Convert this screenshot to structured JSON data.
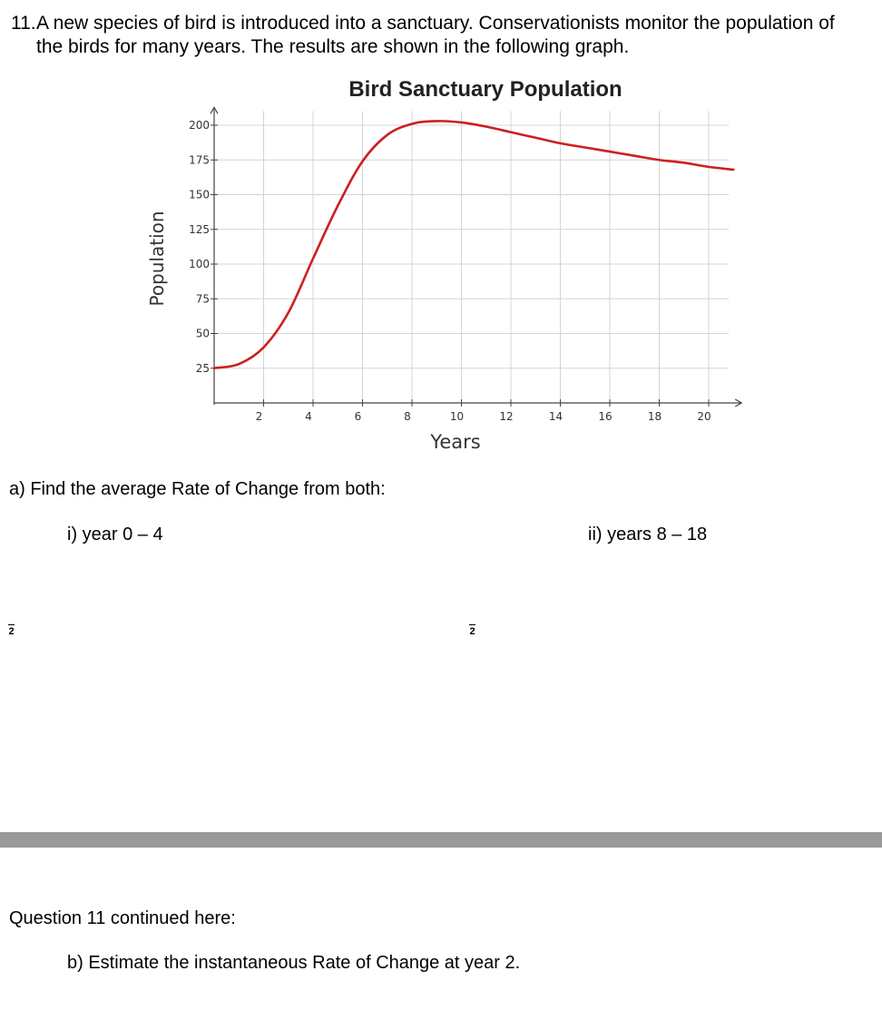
{
  "question": {
    "number": "11.",
    "line1": "A new species of bird is introduced into a sanctuary. Conservationists monitor the population of",
    "line2": "the birds for many years. The results are shown in the following graph."
  },
  "chart_data": {
    "type": "line",
    "title": "Bird Sanctuary Population",
    "xlabel": "Years",
    "ylabel": "Population",
    "xlim": [
      0,
      21
    ],
    "ylim": [
      0,
      205
    ],
    "x_ticks": [
      2,
      4,
      6,
      8,
      10,
      12,
      14,
      16,
      18,
      20
    ],
    "y_ticks": [
      25,
      50,
      75,
      100,
      125,
      150,
      175,
      200
    ],
    "grid": true,
    "line_color": "#cc1f1f",
    "series": [
      {
        "x": [
          0,
          1,
          2,
          3,
          4,
          5,
          6,
          7,
          8,
          9,
          10,
          11,
          12,
          13,
          14,
          15,
          16,
          17,
          18,
          19,
          20,
          21
        ],
        "values": [
          25,
          28,
          40,
          65,
          104,
          142,
          174,
          193,
          201,
          203,
          202,
          199,
          195,
          191,
          187,
          184,
          181,
          178,
          175,
          173,
          170,
          168
        ]
      }
    ]
  },
  "part_a": {
    "prompt": "a) Find the average Rate of Change from both:",
    "i": "i) year 0 – 4",
    "ii": "ii) years 8 – 18"
  },
  "marks": {
    "numerator": "",
    "denominator": "2"
  },
  "continued": "Question 11 continued here:",
  "part_b": "b) Estimate the instantaneous Rate of Change at year 2."
}
